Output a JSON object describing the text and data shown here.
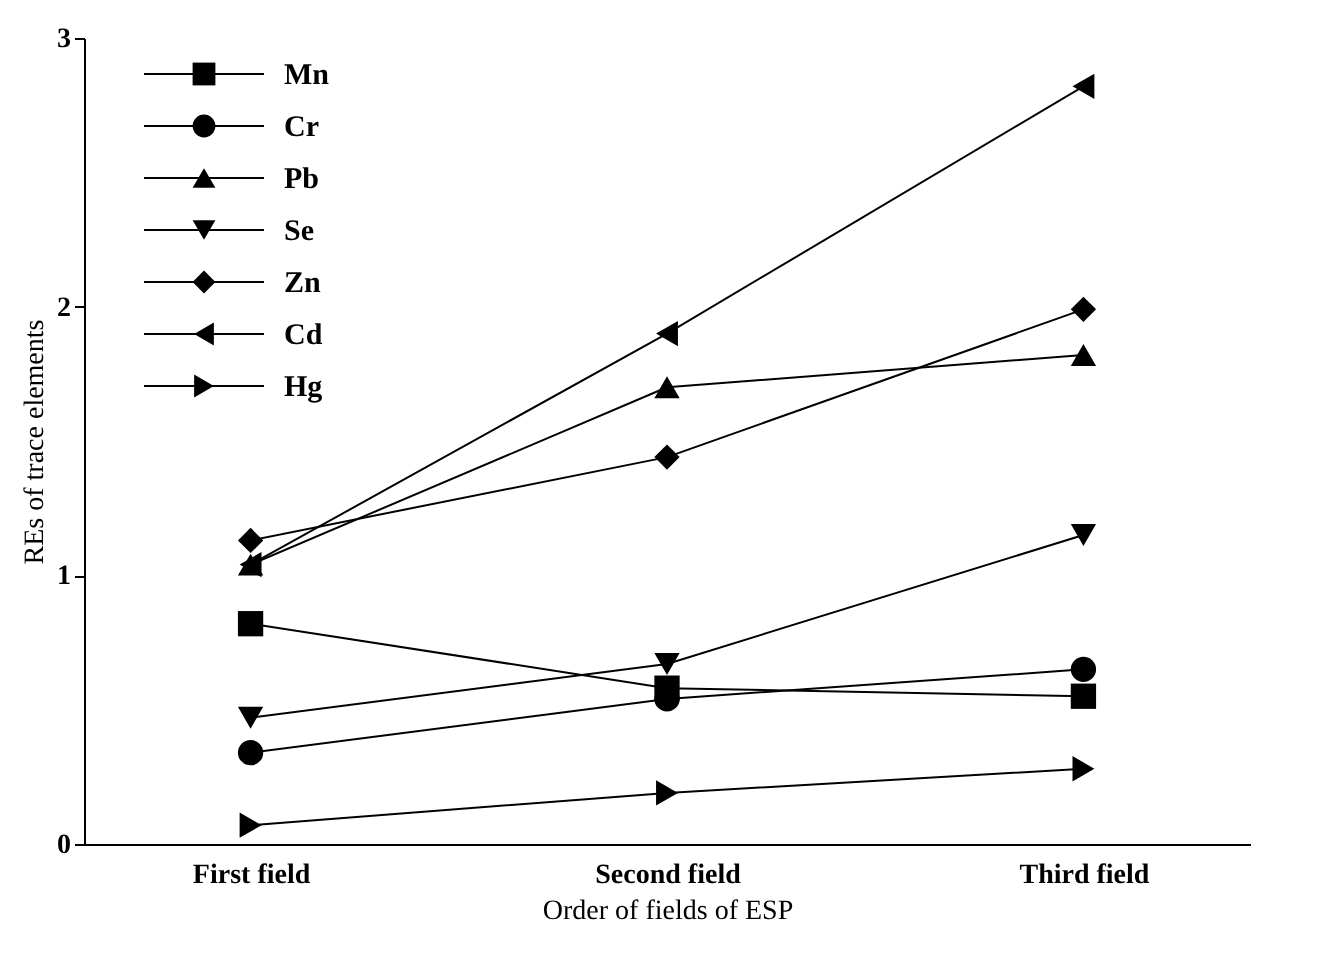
{
  "chart_data": {
    "type": "line",
    "xlabel": "Order of fields of ESP",
    "ylabel": "REs of trace elements",
    "categories": [
      "First field",
      "Second field",
      "Third field"
    ],
    "ylim": [
      0,
      3
    ],
    "yticks": [
      0,
      1,
      2,
      3
    ],
    "grid": false,
    "legend": "top left",
    "line_style": "solid",
    "series": [
      {
        "name": "Mn",
        "color": "#000000",
        "marker": "square",
        "values": [
          0.82,
          0.58,
          0.55
        ]
      },
      {
        "name": "Cr",
        "color": "#000000",
        "marker": "circle",
        "values": [
          0.34,
          0.54,
          0.65
        ]
      },
      {
        "name": "Pb",
        "color": "#000000",
        "marker": "triangle",
        "values": [
          1.04,
          1.7,
          1.82
        ]
      },
      {
        "name": "Se",
        "color": "#000000",
        "marker": "triangle-down",
        "values": [
          0.47,
          0.67,
          1.15
        ]
      },
      {
        "name": "Zn",
        "color": "#000000",
        "marker": "diamond",
        "values": [
          1.13,
          1.44,
          1.99
        ]
      },
      {
        "name": "Cd",
        "color": "#000000",
        "marker": "triangle-left",
        "values": [
          1.04,
          1.9,
          2.82
        ]
      },
      {
        "name": "Hg",
        "color": "#000000",
        "marker": "triangle-right",
        "values": [
          0.07,
          0.19,
          0.28
        ]
      }
    ]
  }
}
